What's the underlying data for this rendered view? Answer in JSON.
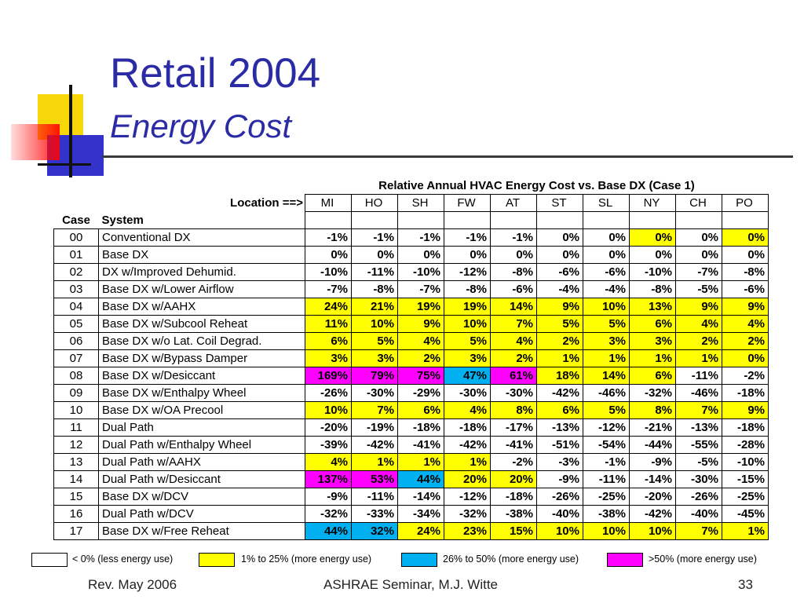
{
  "colors": {
    "title": "#2b2ba6",
    "yellow": "#ffff00",
    "cyan": "#00b0f0",
    "magenta": "#ff00ff",
    "white": "#ffffff"
  },
  "slide": {
    "title": "Retail 2004",
    "subtitle": "Energy Cost"
  },
  "table": {
    "title": "Relative Annual HVAC Energy Cost vs. Base DX (Case 1)",
    "location_label": "Location ==>",
    "case_header": "Case",
    "system_header": "System",
    "locations": [
      "MI",
      "HO",
      "SH",
      "FW",
      "AT",
      "ST",
      "SL",
      "NY",
      "CH",
      "PO"
    ],
    "rows": [
      {
        "case": "00",
        "system": "Conventional DX",
        "values": [
          "-1%",
          "-1%",
          "-1%",
          "-1%",
          "-1%",
          "0%",
          "0%",
          "0%",
          "0%",
          "0%"
        ],
        "colors": [
          "w",
          "w",
          "w",
          "w",
          "w",
          "w",
          "w",
          "y",
          "w",
          "y"
        ]
      },
      {
        "case": "01",
        "system": "Base DX",
        "values": [
          "0%",
          "0%",
          "0%",
          "0%",
          "0%",
          "0%",
          "0%",
          "0%",
          "0%",
          "0%"
        ],
        "colors": [
          "w",
          "w",
          "w",
          "w",
          "w",
          "w",
          "w",
          "w",
          "w",
          "w"
        ]
      },
      {
        "case": "02",
        "system": "DX w/Improved Dehumid.",
        "values": [
          "-10%",
          "-11%",
          "-10%",
          "-12%",
          "-8%",
          "-6%",
          "-6%",
          "-10%",
          "-7%",
          "-8%"
        ],
        "colors": [
          "w",
          "w",
          "w",
          "w",
          "w",
          "w",
          "w",
          "w",
          "w",
          "w"
        ]
      },
      {
        "case": "03",
        "system": "Base DX w/Lower Airflow",
        "values": [
          "-7%",
          "-8%",
          "-7%",
          "-8%",
          "-6%",
          "-4%",
          "-4%",
          "-8%",
          "-5%",
          "-6%"
        ],
        "colors": [
          "w",
          "w",
          "w",
          "w",
          "w",
          "w",
          "w",
          "w",
          "w",
          "w"
        ]
      },
      {
        "case": "04",
        "system": "Base DX w/AAHX",
        "values": [
          "24%",
          "21%",
          "19%",
          "19%",
          "14%",
          "9%",
          "10%",
          "13%",
          "9%",
          "9%"
        ],
        "colors": [
          "y",
          "y",
          "y",
          "y",
          "y",
          "y",
          "y",
          "y",
          "y",
          "y"
        ]
      },
      {
        "case": "05",
        "system": "Base DX w/Subcool Reheat",
        "values": [
          "11%",
          "10%",
          "9%",
          "10%",
          "7%",
          "5%",
          "5%",
          "6%",
          "4%",
          "4%"
        ],
        "colors": [
          "y",
          "y",
          "y",
          "y",
          "y",
          "y",
          "y",
          "y",
          "y",
          "y"
        ]
      },
      {
        "case": "06",
        "system": "Base DX w/o Lat. Coil Degrad.",
        "values": [
          "6%",
          "5%",
          "4%",
          "5%",
          "4%",
          "2%",
          "3%",
          "3%",
          "2%",
          "2%"
        ],
        "colors": [
          "y",
          "y",
          "y",
          "y",
          "y",
          "y",
          "y",
          "y",
          "y",
          "y"
        ]
      },
      {
        "case": "07",
        "system": "Base DX w/Bypass Damper",
        "values": [
          "3%",
          "3%",
          "2%",
          "3%",
          "2%",
          "1%",
          "1%",
          "1%",
          "1%",
          "0%"
        ],
        "colors": [
          "y",
          "y",
          "y",
          "y",
          "y",
          "y",
          "y",
          "y",
          "y",
          "y"
        ]
      },
      {
        "case": "08",
        "system": "Base DX w/Desiccant",
        "values": [
          "169%",
          "79%",
          "75%",
          "47%",
          "61%",
          "18%",
          "14%",
          "6%",
          "-11%",
          "-2%"
        ],
        "colors": [
          "m",
          "m",
          "m",
          "c",
          "m",
          "y",
          "y",
          "y",
          "w",
          "w"
        ]
      },
      {
        "case": "09",
        "system": "Base DX w/Enthalpy Wheel",
        "values": [
          "-26%",
          "-30%",
          "-29%",
          "-30%",
          "-30%",
          "-42%",
          "-46%",
          "-32%",
          "-46%",
          "-18%"
        ],
        "colors": [
          "w",
          "w",
          "w",
          "w",
          "w",
          "w",
          "w",
          "w",
          "w",
          "w"
        ]
      },
      {
        "case": "10",
        "system": "Base DX w/OA Precool",
        "values": [
          "10%",
          "7%",
          "6%",
          "4%",
          "8%",
          "6%",
          "5%",
          "8%",
          "7%",
          "9%"
        ],
        "colors": [
          "y",
          "y",
          "y",
          "y",
          "y",
          "y",
          "y",
          "y",
          "y",
          "y"
        ]
      },
      {
        "case": "11",
        "system": "Dual Path",
        "values": [
          "-20%",
          "-19%",
          "-18%",
          "-18%",
          "-17%",
          "-13%",
          "-12%",
          "-21%",
          "-13%",
          "-18%"
        ],
        "colors": [
          "w",
          "w",
          "w",
          "w",
          "w",
          "w",
          "w",
          "w",
          "w",
          "w"
        ]
      },
      {
        "case": "12",
        "system": "Dual Path w/Enthalpy Wheel",
        "values": [
          "-39%",
          "-42%",
          "-41%",
          "-42%",
          "-41%",
          "-51%",
          "-54%",
          "-44%",
          "-55%",
          "-28%"
        ],
        "colors": [
          "w",
          "w",
          "w",
          "w",
          "w",
          "w",
          "w",
          "w",
          "w",
          "w"
        ]
      },
      {
        "case": "13",
        "system": "Dual Path w/AAHX",
        "values": [
          "4%",
          "1%",
          "1%",
          "1%",
          "-2%",
          "-3%",
          "-1%",
          "-9%",
          "-5%",
          "-10%"
        ],
        "colors": [
          "y",
          "y",
          "y",
          "y",
          "w",
          "w",
          "w",
          "w",
          "w",
          "w"
        ]
      },
      {
        "case": "14",
        "system": "Dual Path w/Desiccant",
        "values": [
          "137%",
          "53%",
          "44%",
          "20%",
          "20%",
          "-9%",
          "-11%",
          "-14%",
          "-30%",
          "-15%"
        ],
        "colors": [
          "m",
          "m",
          "c",
          "y",
          "y",
          "w",
          "w",
          "w",
          "w",
          "w"
        ]
      },
      {
        "case": "15",
        "system": "Base DX w/DCV",
        "values": [
          "-9%",
          "-11%",
          "-14%",
          "-12%",
          "-18%",
          "-26%",
          "-25%",
          "-20%",
          "-26%",
          "-25%"
        ],
        "colors": [
          "w",
          "w",
          "w",
          "w",
          "w",
          "w",
          "w",
          "w",
          "w",
          "w"
        ]
      },
      {
        "case": "16",
        "system": "Dual Path w/DCV",
        "values": [
          "-32%",
          "-33%",
          "-34%",
          "-32%",
          "-38%",
          "-40%",
          "-38%",
          "-42%",
          "-40%",
          "-45%"
        ],
        "colors": [
          "w",
          "w",
          "w",
          "w",
          "w",
          "w",
          "w",
          "w",
          "w",
          "w"
        ]
      },
      {
        "case": "17",
        "system": "Base DX w/Free Reheat",
        "values": [
          "44%",
          "32%",
          "24%",
          "23%",
          "15%",
          "10%",
          "10%",
          "10%",
          "7%",
          "1%"
        ],
        "colors": [
          "c",
          "c",
          "y",
          "y",
          "y",
          "y",
          "y",
          "y",
          "y",
          "y"
        ]
      }
    ]
  },
  "legend": [
    {
      "color": "#ffffff",
      "label": "< 0% (less energy use)"
    },
    {
      "color": "#ffff00",
      "label": "1% to 25% (more energy use)"
    },
    {
      "color": "#00b0f0",
      "label": "26% to 50% (more energy use)"
    },
    {
      "color": "#ff00ff",
      "label": ">50% (more energy use)"
    }
  ],
  "footer": {
    "left": "Rev. May 2006",
    "center": "ASHRAE Seminar, M.J. Witte",
    "right": "33"
  }
}
